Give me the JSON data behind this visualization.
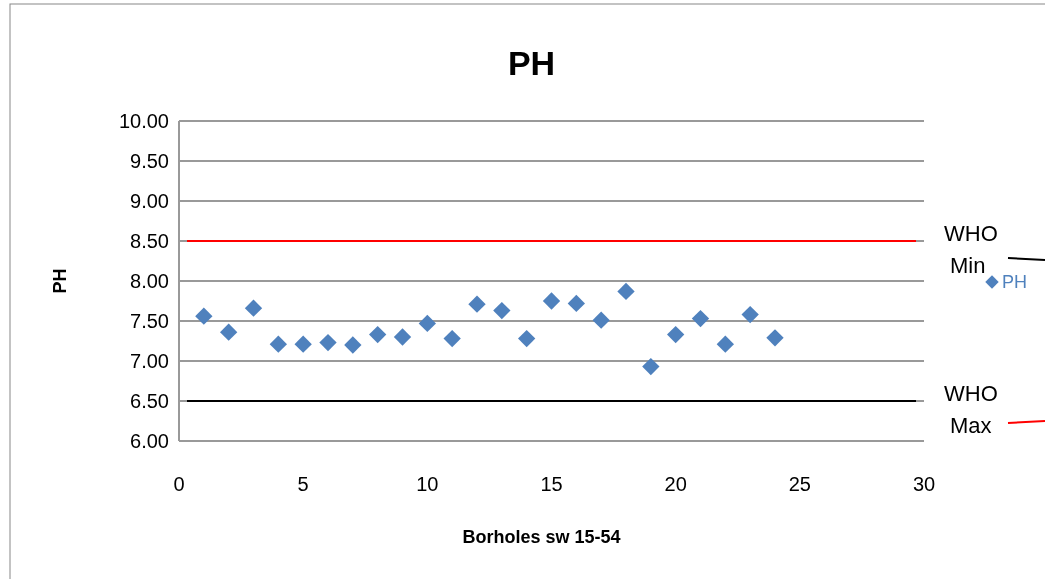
{
  "chart_data": {
    "type": "scatter",
    "title": "PH",
    "xlabel": "Borholes sw 15-54",
    "ylabel": "PH",
    "x": [
      1,
      2,
      3,
      4,
      5,
      6,
      7,
      8,
      9,
      10,
      11,
      12,
      13,
      14,
      15,
      16,
      17,
      18,
      19,
      20,
      21,
      22,
      23,
      24
    ],
    "series": [
      {
        "name": "PH",
        "color": "#4f81bd",
        "values": [
          7.56,
          7.36,
          7.66,
          7.21,
          7.21,
          7.23,
          7.2,
          7.33,
          7.3,
          7.47,
          7.28,
          7.71,
          7.63,
          7.28,
          7.75,
          7.72,
          7.51,
          7.87,
          6.93,
          7.33,
          7.53,
          7.21,
          7.58,
          7.29
        ]
      }
    ],
    "marker": "diamond",
    "xlim": [
      0,
      30
    ],
    "xticks": [
      0,
      5,
      10,
      15,
      20,
      25,
      30
    ],
    "ylim": [
      6,
      10
    ],
    "yticks": [
      {
        "value": 6,
        "label": "6.00"
      },
      {
        "value": 6.5,
        "label": "6.50"
      },
      {
        "value": 7,
        "label": "7.00"
      },
      {
        "value": 7.5,
        "label": "7.50"
      },
      {
        "value": 8,
        "label": "8.00"
      },
      {
        "value": 8.5,
        "label": "8.50"
      },
      {
        "value": 9,
        "label": "9.00"
      },
      {
        "value": 9.5,
        "label": "9.50"
      },
      {
        "value": 10,
        "label": "10.00"
      }
    ],
    "grid": "y",
    "legend": "right",
    "ref_lines": [
      {
        "axis": "y",
        "value": 8.5,
        "label": "WHO Min",
        "color": "#ff0000"
      },
      {
        "axis": "y",
        "value": 6.5,
        "label": "WHO Max",
        "color": "#000000"
      }
    ]
  }
}
